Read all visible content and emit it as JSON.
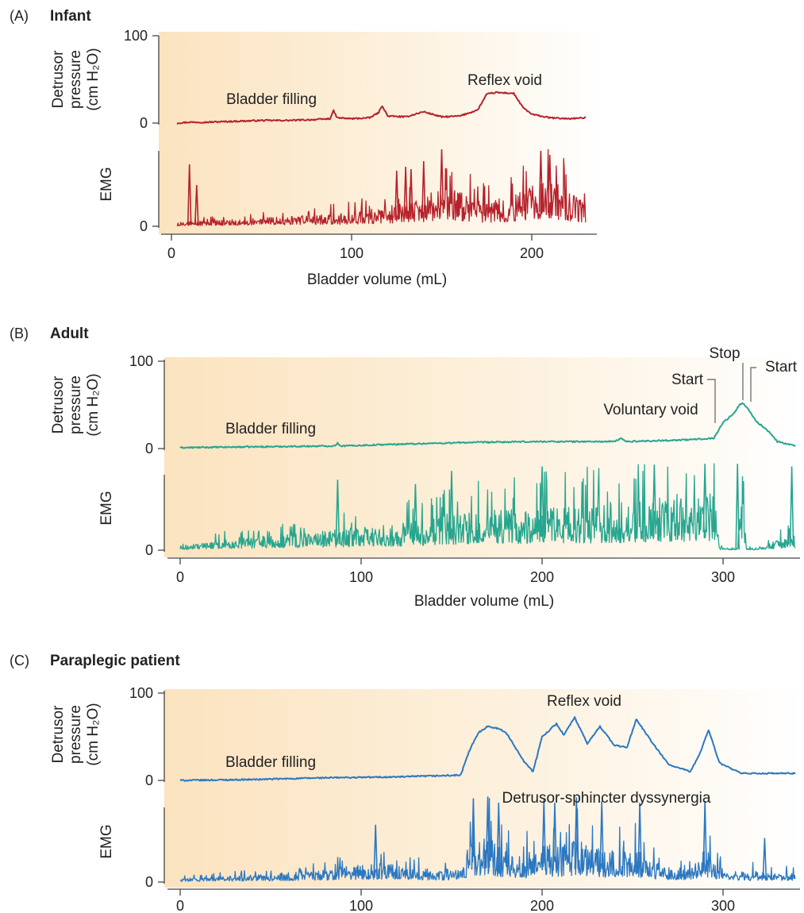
{
  "chart_data": [
    {
      "panel_letter": "(A)",
      "title": "Infant",
      "type": "line",
      "color": "#b5222c",
      "xlabel": "Bladder volume (mL)",
      "xticks": [
        0,
        100,
        200
      ],
      "xlim": [
        0,
        230
      ],
      "pressure": {
        "ylabel_line1": "Detrusor",
        "ylabel_line2": "pressure",
        "ylabel_line3": "(cm H₂O)",
        "ylim": [
          0,
          100
        ],
        "yticks": [
          0,
          100
        ],
        "x": [
          3,
          10,
          20,
          35,
          50,
          65,
          80,
          88,
          90,
          92,
          100,
          110,
          115,
          117,
          120,
          130,
          140,
          150,
          160,
          170,
          175,
          180,
          190,
          195,
          200,
          210,
          220,
          230
        ],
        "y": [
          0,
          1,
          1,
          2,
          3,
          3,
          4,
          5,
          14,
          6,
          5,
          6,
          12,
          20,
          8,
          7,
          13,
          7,
          8,
          15,
          33,
          35,
          34,
          18,
          10,
          6,
          5,
          6
        ]
      },
      "emg": {
        "ylabel": "EMG",
        "ylim": [
          0,
          100
        ],
        "yticks": [
          0
        ],
        "envelope_x": [
          3,
          20,
          40,
          60,
          80,
          100,
          120,
          140,
          150,
          160,
          175,
          190,
          200,
          215,
          230
        ],
        "envelope_y": [
          5,
          7,
          9,
          12,
          14,
          17,
          25,
          35,
          55,
          45,
          30,
          40,
          60,
          55,
          30
        ],
        "spikes": [
          {
            "x": 10,
            "y": 78
          },
          {
            "x": 14,
            "y": 52
          },
          {
            "x": 125,
            "y": 70
          },
          {
            "x": 130,
            "y": 75
          },
          {
            "x": 133,
            "y": 72
          },
          {
            "x": 140,
            "y": 82
          },
          {
            "x": 150,
            "y": 97
          },
          {
            "x": 205,
            "y": 95
          },
          {
            "x": 210,
            "y": 90
          }
        ]
      },
      "annotations": [
        {
          "text": "Bladder filling",
          "x": 85,
          "y": 20
        },
        {
          "text": "Reflex void",
          "x": 180,
          "y": 40
        }
      ]
    },
    {
      "panel_letter": "(B)",
      "title": "Adult",
      "type": "line",
      "color": "#26a690",
      "xlabel": "Bladder volume (mL)",
      "xticks": [
        0,
        100,
        200,
        300
      ],
      "xlim": [
        0,
        340
      ],
      "pressure": {
        "ylabel_line1": "Detrusor",
        "ylabel_line2": "pressure",
        "ylabel_line3": "(cm H₂O)",
        "ylim": [
          0,
          100
        ],
        "yticks": [
          0,
          100
        ],
        "x": [
          0,
          40,
          85,
          87,
          89,
          120,
          160,
          200,
          240,
          244,
          246,
          280,
          295,
          300,
          306,
          309,
          311,
          314,
          318,
          325,
          330,
          340
        ],
        "y": [
          1,
          2,
          3,
          6,
          3,
          5,
          7,
          8,
          8,
          12,
          8,
          10,
          12,
          30,
          40,
          50,
          52,
          45,
          32,
          20,
          8,
          3
        ]
      },
      "emg": {
        "ylabel": "EMG",
        "ylim": [
          0,
          100
        ],
        "yticks": [
          0
        ],
        "envelope_x": [
          0,
          30,
          60,
          90,
          120,
          150,
          180,
          200,
          220,
          240,
          260,
          280,
          295,
          298,
          305,
          308,
          311,
          313,
          320,
          330,
          335,
          340
        ],
        "envelope_y": [
          5,
          14,
          18,
          24,
          30,
          42,
          48,
          52,
          52,
          55,
          60,
          65,
          70,
          4,
          2,
          2,
          100,
          3,
          2,
          12,
          20,
          10
        ],
        "spikes": [
          {
            "x": 87,
            "y": 80
          },
          {
            "x": 130,
            "y": 75
          },
          {
            "x": 150,
            "y": 90
          },
          {
            "x": 200,
            "y": 95
          },
          {
            "x": 262,
            "y": 97
          },
          {
            "x": 290,
            "y": 98
          },
          {
            "x": 308,
            "y": 98
          },
          {
            "x": 338,
            "y": 95
          }
        ]
      },
      "annotations": [
        {
          "text": "Bladder filling",
          "x": 55,
          "y": 20
        },
        {
          "text": "Voluntary void",
          "x": 258,
          "y": 38
        },
        {
          "text": "Start",
          "x": 292,
          "y": 72
        },
        {
          "text": "Stop",
          "x": 302,
          "y": 95
        },
        {
          "text": "Start",
          "x": 324,
          "y": 85
        }
      ]
    },
    {
      "panel_letter": "(C)",
      "title": "Paraplegic patient",
      "type": "line",
      "color": "#2b78c2",
      "xticks": [
        0,
        100,
        200,
        300
      ],
      "xlim": [
        0,
        340
      ],
      "pressure": {
        "ylabel_line1": "Detrusor",
        "ylabel_line2": "pressure",
        "ylabel_line3": "(cm H₂O)",
        "ylim": [
          0,
          100
        ],
        "yticks": [
          0,
          100
        ],
        "x": [
          0,
          40,
          80,
          120,
          155,
          160,
          165,
          170,
          175,
          180,
          190,
          195,
          200,
          208,
          212,
          218,
          225,
          232,
          240,
          247,
          252,
          262,
          270,
          282,
          287,
          292,
          298,
          310,
          340
        ],
        "y": [
          0,
          1,
          3,
          4,
          6,
          35,
          55,
          62,
          60,
          55,
          22,
          10,
          50,
          65,
          52,
          72,
          42,
          62,
          40,
          38,
          70,
          40,
          18,
          10,
          30,
          58,
          20,
          8,
          8
        ]
      },
      "emg": {
        "ylabel": "EMG",
        "ylim": [
          0,
          100
        ],
        "yticks": [
          0
        ],
        "envelope_x": [
          0,
          40,
          80,
          100,
          110,
          130,
          155,
          160,
          170,
          180,
          190,
          200,
          210,
          220,
          235,
          250,
          265,
          280,
          290,
          300,
          320,
          340
        ],
        "envelope_y": [
          4,
          8,
          14,
          20,
          22,
          16,
          14,
          45,
          55,
          35,
          30,
          45,
          42,
          50,
          35,
          40,
          20,
          15,
          40,
          15,
          12,
          10
        ],
        "spikes": [
          {
            "x": 108,
            "y": 65
          },
          {
            "x": 162,
            "y": 95
          },
          {
            "x": 170,
            "y": 97
          },
          {
            "x": 176,
            "y": 90
          },
          {
            "x": 201,
            "y": 94
          },
          {
            "x": 207,
            "y": 90
          },
          {
            "x": 219,
            "y": 96
          },
          {
            "x": 233,
            "y": 92
          },
          {
            "x": 254,
            "y": 90
          },
          {
            "x": 290,
            "y": 92
          },
          {
            "x": 323,
            "y": 50
          }
        ]
      },
      "annotations": [
        {
          "text": "Bladder filling",
          "x": 55,
          "y": 15
        },
        {
          "text": "Reflex void",
          "x": 200,
          "y": 85
        },
        {
          "text": "Detrusor-sphincter dyssynergia",
          "x": 240,
          "y": 35
        }
      ]
    }
  ]
}
